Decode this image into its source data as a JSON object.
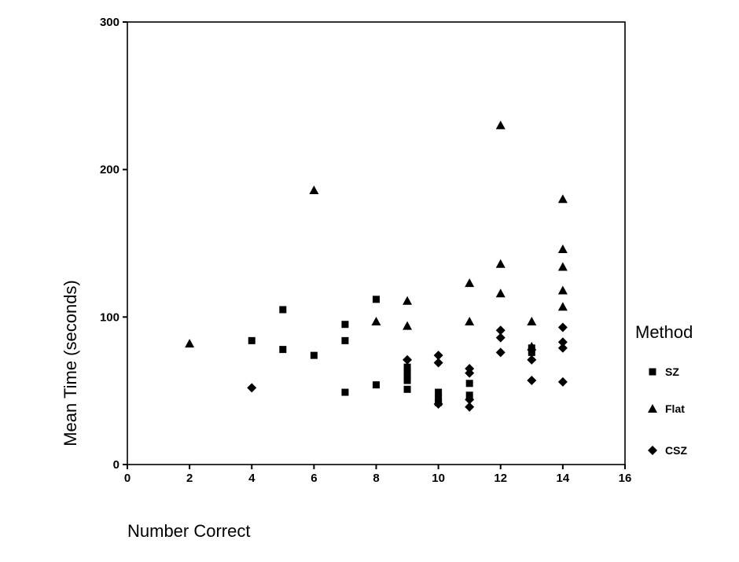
{
  "chart_data": {
    "type": "scatter",
    "xlabel": "Number Correct",
    "ylabel": "Mean Time (seconds)",
    "xlim": [
      0,
      16
    ],
    "ylim": [
      0,
      300
    ],
    "xticks": [
      "0",
      "2",
      "4",
      "6",
      "8",
      "10",
      "12",
      "14",
      "16"
    ],
    "yticks": [
      "0",
      "100",
      "200",
      "300"
    ],
    "grid": false,
    "legend": {
      "title": "Method",
      "position": "right"
    },
    "series": [
      {
        "name": "SZ",
        "marker": "square",
        "points": [
          [
            4,
            84
          ],
          [
            5,
            105
          ],
          [
            5,
            78
          ],
          [
            6,
            74
          ],
          [
            7,
            95
          ],
          [
            7,
            84
          ],
          [
            7,
            49
          ],
          [
            8,
            112
          ],
          [
            8,
            54
          ],
          [
            9,
            66
          ],
          [
            9,
            63
          ],
          [
            9,
            60
          ],
          [
            9,
            57
          ],
          [
            9,
            51
          ],
          [
            10,
            49
          ],
          [
            10,
            45
          ],
          [
            10,
            42
          ],
          [
            11,
            55
          ],
          [
            11,
            47
          ],
          [
            13,
            79
          ],
          [
            13,
            76
          ]
        ]
      },
      {
        "name": "Flat",
        "marker": "triangle",
        "points": [
          [
            2,
            82
          ],
          [
            6,
            186
          ],
          [
            8,
            97
          ],
          [
            9,
            111
          ],
          [
            9,
            94
          ],
          [
            11,
            123
          ],
          [
            11,
            97
          ],
          [
            12,
            230
          ],
          [
            12,
            136
          ],
          [
            12,
            116
          ],
          [
            13,
            97
          ],
          [
            13,
            80
          ],
          [
            14,
            180
          ],
          [
            14,
            146
          ],
          [
            14,
            134
          ],
          [
            14,
            118
          ],
          [
            14,
            107
          ]
        ]
      },
      {
        "name": "CSZ",
        "marker": "diamond",
        "points": [
          [
            4,
            52
          ],
          [
            9,
            71
          ],
          [
            10,
            74
          ],
          [
            10,
            69
          ],
          [
            10,
            41
          ],
          [
            11,
            65
          ],
          [
            11,
            62
          ],
          [
            11,
            44
          ],
          [
            11,
            39
          ],
          [
            12,
            91
          ],
          [
            12,
            86
          ],
          [
            12,
            76
          ],
          [
            13,
            71
          ],
          [
            13,
            57
          ],
          [
            14,
            93
          ],
          [
            14,
            83
          ],
          [
            14,
            79
          ],
          [
            14,
            56
          ]
        ]
      }
    ]
  }
}
